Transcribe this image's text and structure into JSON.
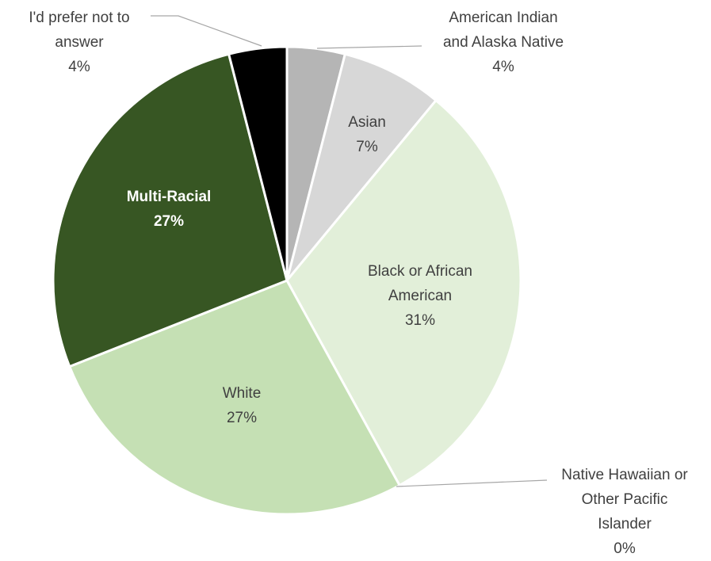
{
  "chart_data": {
    "type": "pie",
    "title": "",
    "slices": [
      {
        "label_lines": [
          "American Indian",
          "and Alaska Native"
        ],
        "percent_label": "4%",
        "value": 4,
        "color": "#b5b5b5",
        "label_color": "#404040",
        "bold": false
      },
      {
        "label_lines": [
          "Asian"
        ],
        "percent_label": "7%",
        "value": 7,
        "color": "#d7d7d7",
        "label_color": "#404040",
        "bold": false
      },
      {
        "label_lines": [
          "Black or African",
          "American"
        ],
        "percent_label": "31%",
        "value": 31,
        "color": "#e2efd9",
        "label_color": "#404040",
        "bold": false
      },
      {
        "label_lines": [
          "Native Hawaiian or",
          "Other Pacific",
          "Islander"
        ],
        "percent_label": "0%",
        "value": 0,
        "color": "#e2efd9",
        "label_color": "#404040",
        "bold": false
      },
      {
        "label_lines": [
          "White"
        ],
        "percent_label": "27%",
        "value": 27,
        "color": "#c5e0b4",
        "label_color": "#404040",
        "bold": false
      },
      {
        "label_lines": [
          "Multi-Racial"
        ],
        "percent_label": "27%",
        "value": 27,
        "color": "#375623",
        "label_color": "#ffffff",
        "bold": true
      },
      {
        "label_lines": [
          "I'd prefer not to",
          "answer"
        ],
        "percent_label": "4%",
        "value": 4,
        "color": "#000000",
        "label_color": "#404040",
        "bold": false
      }
    ]
  }
}
